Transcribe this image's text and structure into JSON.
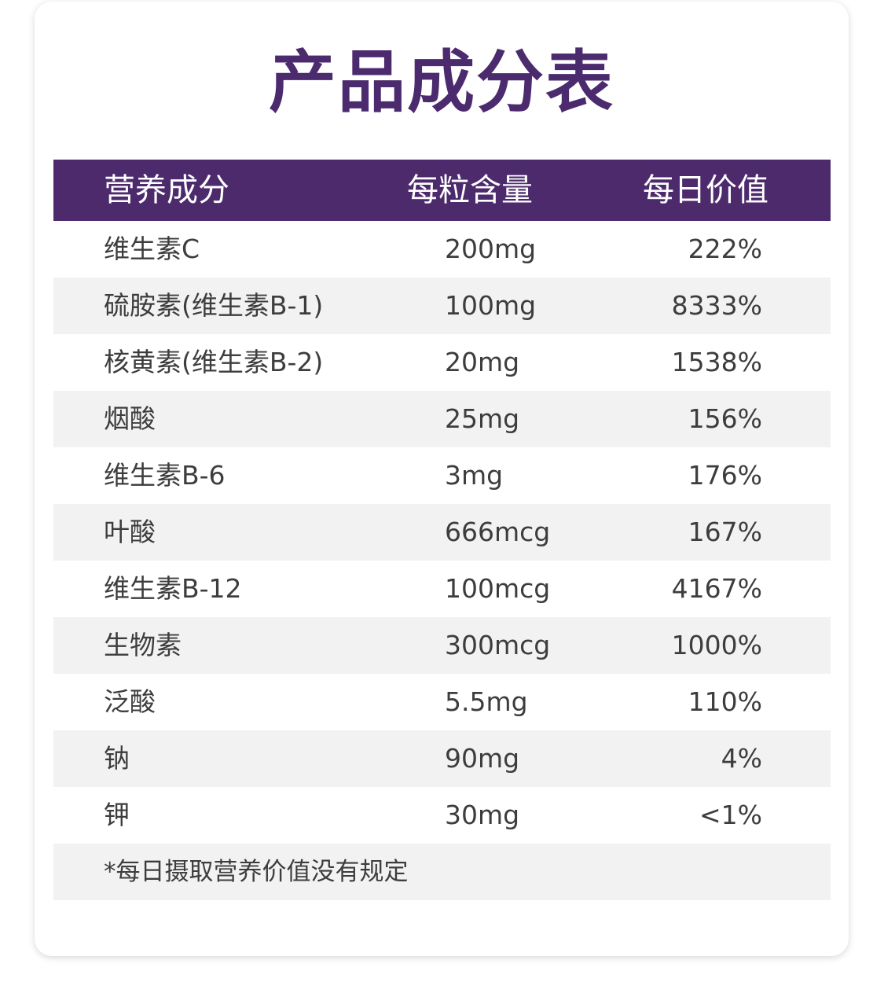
{
  "title": "产品成分表",
  "table": {
    "headers": [
      "营养成分",
      "每粒含量",
      "每日价值"
    ],
    "rows": [
      {
        "name": "维生素C",
        "amount": "200mg",
        "dv": "222%"
      },
      {
        "name": "硫胺素(维生素B-1)",
        "amount": "100mg",
        "dv": "8333%"
      },
      {
        "name": "核黄素(维生素B-2)",
        "amount": "20mg",
        "dv": "1538%"
      },
      {
        "name": "烟酸",
        "amount": "25mg",
        "dv": "156%"
      },
      {
        "name": "维生素B-6",
        "amount": "3mg",
        "dv": "176%"
      },
      {
        "name": "叶酸",
        "amount": "666mcg",
        "dv": "167%"
      },
      {
        "name": "维生素B-12",
        "amount": "100mcg",
        "dv": "4167%"
      },
      {
        "name": "生物素",
        "amount": "300mcg",
        "dv": "1000%"
      },
      {
        "name": "泛酸",
        "amount": "5.5mg",
        "dv": "110%"
      },
      {
        "name": "钠",
        "amount": "90mg",
        "dv": "4%"
      },
      {
        "name": "钾",
        "amount": "30mg",
        "dv": "<1%"
      }
    ],
    "note": "*每日摄取营养价值没有规定"
  },
  "colors": {
    "header_bg": "#4c2a6c",
    "title": "#4b2a6e",
    "alt_row": "#f2f2f2",
    "text": "#3d3d3d"
  }
}
